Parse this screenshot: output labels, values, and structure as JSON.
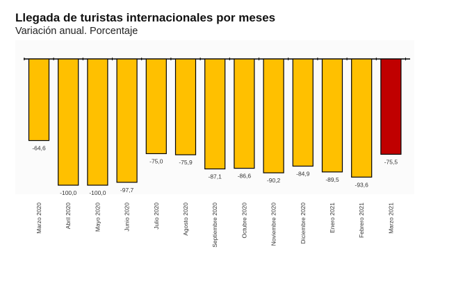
{
  "title": "Llegada de turistas internacionales por meses",
  "subtitle": "Variación anual. Porcentaje",
  "chart_data": {
    "type": "bar",
    "categories": [
      "Marzo 2020",
      "Abril 2020",
      "Mayo 2020",
      "Junio 2020",
      "Julio 2020",
      "Agosto 2020",
      "Septiembre 2020",
      "Octubre 2020",
      "Noviembre 2020",
      "Diciembre 2020",
      "Enero 2021",
      "Febrero 2021",
      "Marzo 2021"
    ],
    "values": [
      -64.6,
      -100.0,
      -100.0,
      -97.7,
      -75.0,
      -75.9,
      -87.1,
      -86.6,
      -90.2,
      -84.9,
      -89.5,
      -93.6,
      -75.5
    ],
    "value_labels": [
      "-64,6",
      "-100,0",
      "-100,0",
      "-97,7",
      "-75,0",
      "-75,9",
      "-87,1",
      "-86,6",
      "-90,2",
      "-84,9",
      "-89,5",
      "-93,6",
      "-75,5"
    ],
    "ylim": [
      -100,
      0
    ],
    "colors": {
      "default": "#FFC000",
      "highlight": "#C00000",
      "border": "#000000"
    },
    "highlight_index": 12,
    "xlabel": "",
    "ylabel": ""
  }
}
